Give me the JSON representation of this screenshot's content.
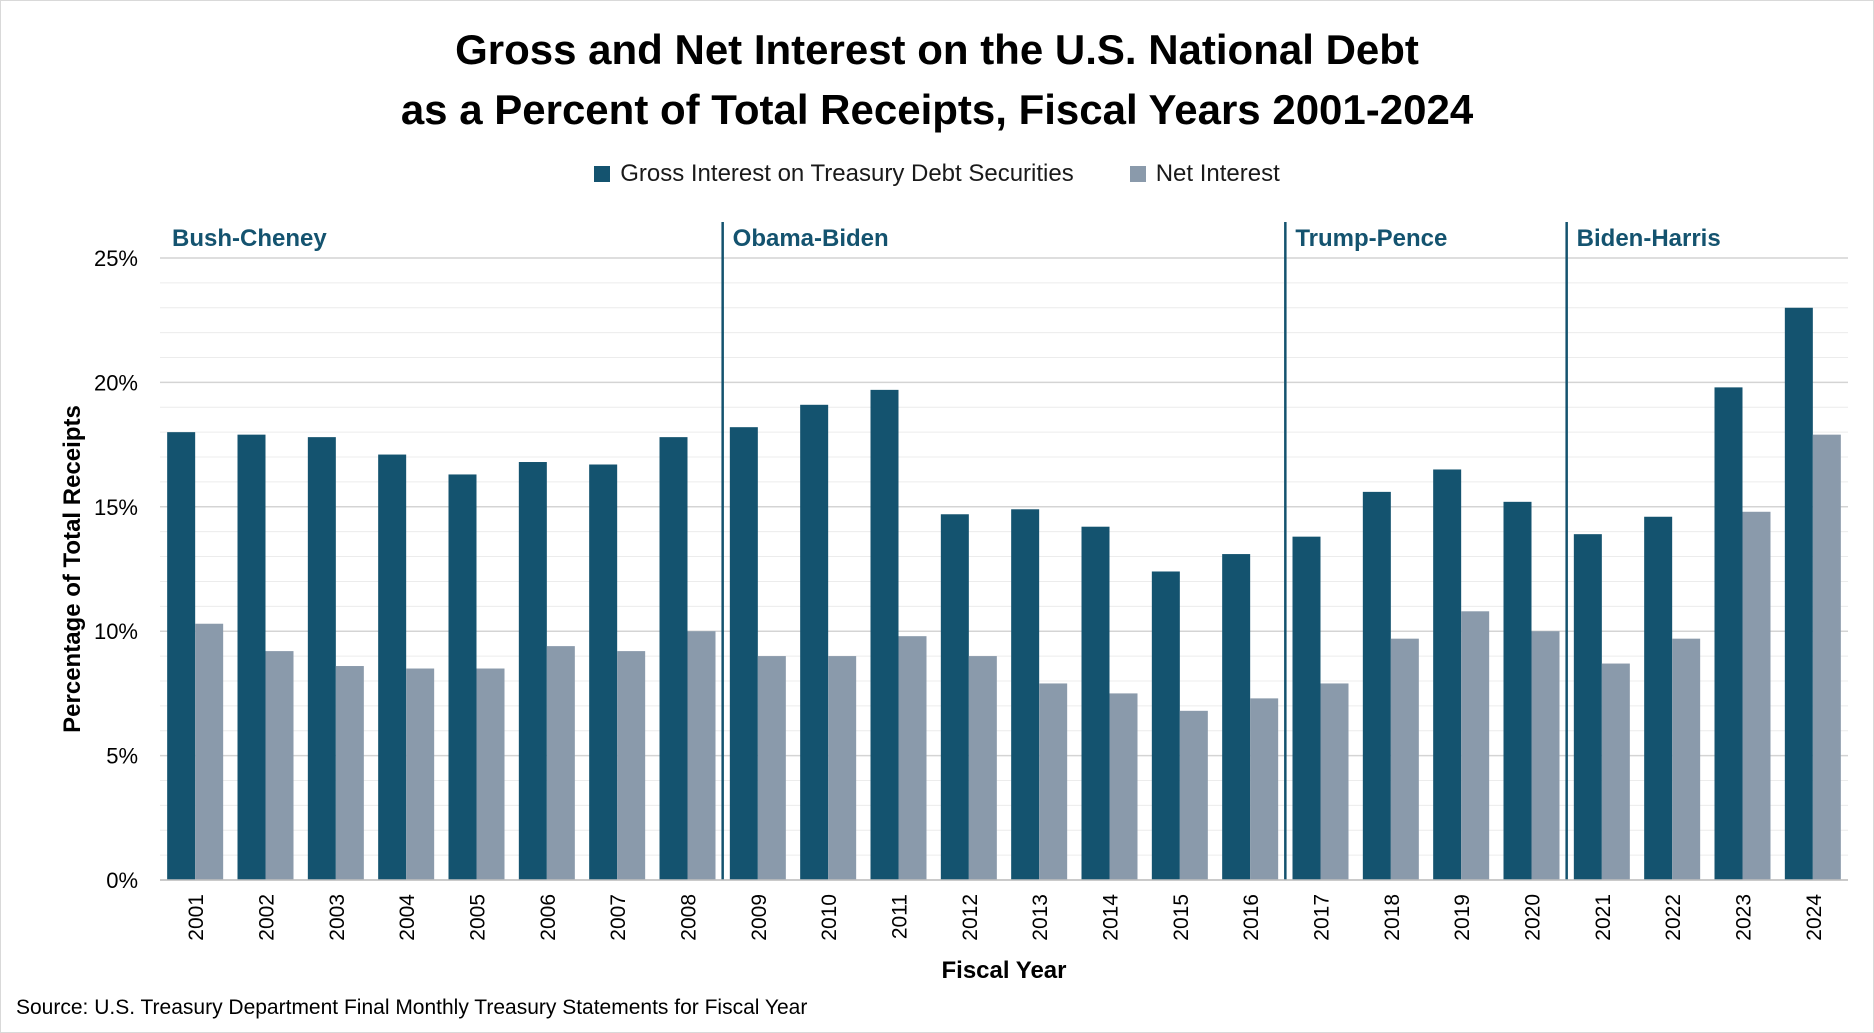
{
  "title_line1": "Gross and Net Interest on the U.S. National Debt",
  "title_line2": "as a Percent of Total Receipts, Fiscal Years 2001-2024",
  "source": "Source: U.S. Treasury Department Final Monthly Treasury Statements for Fiscal Year",
  "colors": {
    "gross": "#14536f",
    "net": "#8a9aab",
    "divider": "#14536f",
    "era_label": "#14536f",
    "gridline": "#d4d4d4",
    "minor_gridline": "#ececec"
  },
  "chart_data": {
    "type": "bar",
    "title": "Gross and Net Interest on the U.S. National Debt as a Percent of Total Receipts, Fiscal Years 2001-2024",
    "xlabel": "Fiscal Year",
    "ylabel": "Percentage of Total Receipts",
    "ylim": [
      0,
      25
    ],
    "yticks": [
      "0%",
      "5%",
      "10%",
      "15%",
      "20%",
      "25%"
    ],
    "ytick_values": [
      0,
      5,
      10,
      15,
      20,
      25
    ],
    "grid": true,
    "legend_position": "top-center",
    "categories": [
      "2001",
      "2002",
      "2003",
      "2004",
      "2005",
      "2006",
      "2007",
      "2008",
      "2009",
      "2010",
      "2011",
      "2012",
      "2013",
      "2014",
      "2015",
      "2016",
      "2017",
      "2018",
      "2019",
      "2020",
      "2021",
      "2022",
      "2023",
      "2024"
    ],
    "series": [
      {
        "name": "Gross Interest on Treasury Debt Securities",
        "values": [
          18.0,
          17.9,
          17.8,
          17.1,
          16.3,
          16.8,
          16.7,
          17.8,
          18.2,
          19.1,
          19.7,
          14.7,
          14.9,
          14.2,
          12.4,
          13.1,
          13.8,
          15.6,
          16.5,
          15.2,
          13.9,
          14.6,
          19.8,
          23.0
        ]
      },
      {
        "name": "Net Interest",
        "values": [
          10.3,
          9.2,
          8.6,
          8.5,
          8.5,
          9.4,
          9.2,
          10.0,
          9.0,
          9.0,
          9.8,
          9.0,
          7.9,
          7.5,
          6.8,
          7.3,
          7.9,
          9.7,
          10.8,
          10.0,
          8.7,
          9.7,
          14.8,
          17.9
        ]
      }
    ],
    "eras": [
      {
        "label": "Bush-Cheney",
        "start": "2001",
        "end": "2008"
      },
      {
        "label": "Obama-Biden",
        "start": "2009",
        "end": "2016"
      },
      {
        "label": "Trump-Pence",
        "start": "2017",
        "end": "2020"
      },
      {
        "label": "Biden-Harris",
        "start": "2021",
        "end": "2024"
      }
    ]
  }
}
